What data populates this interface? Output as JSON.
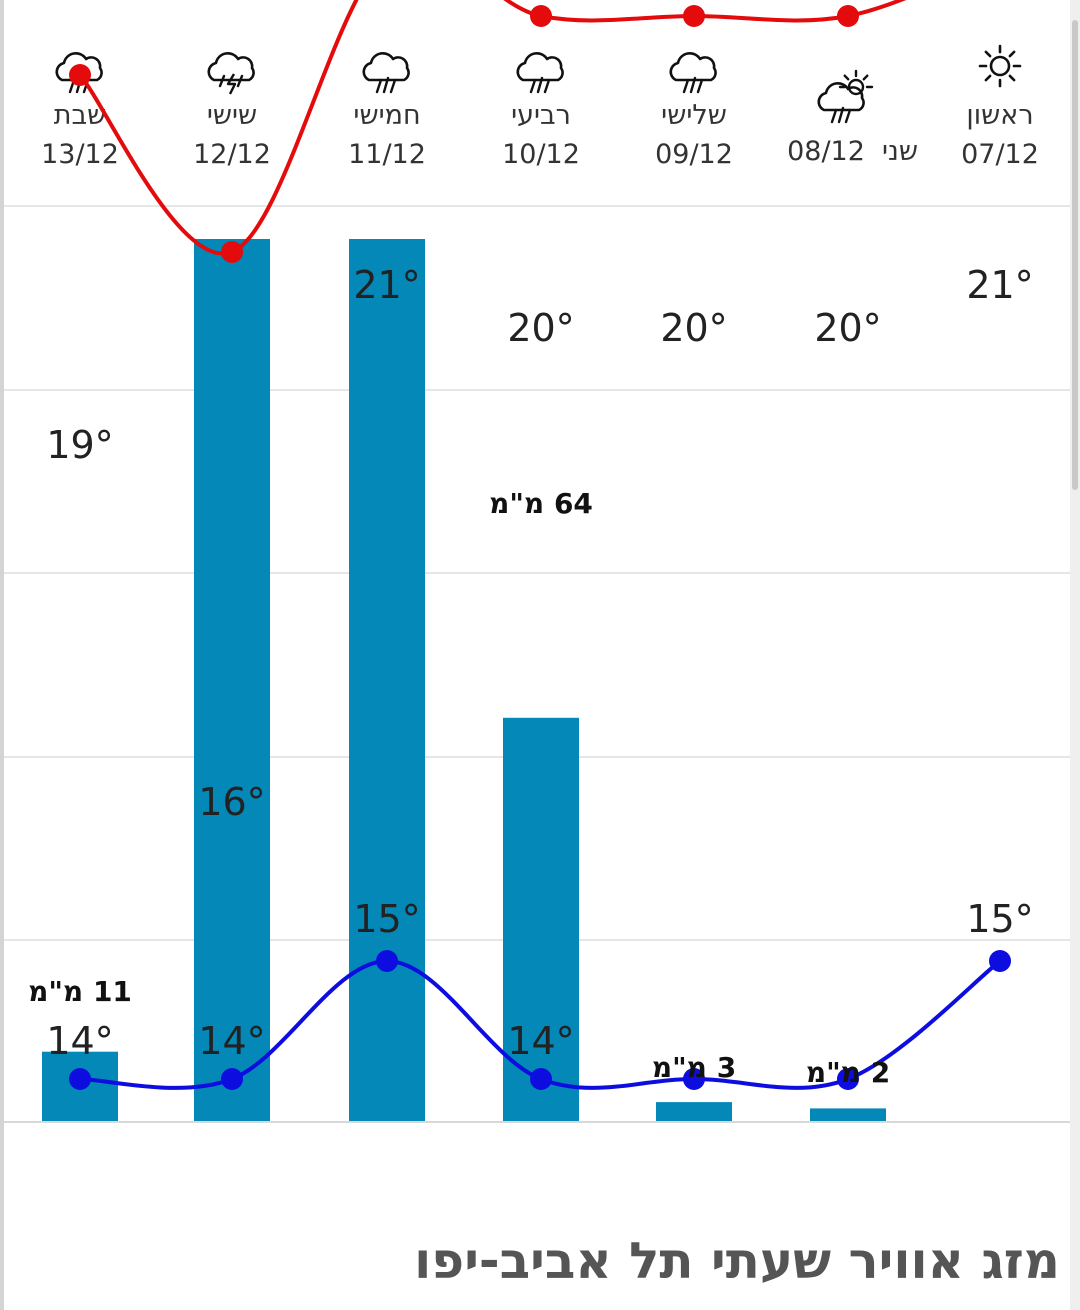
{
  "page": {
    "title": "מזג אוויר שעתי תל אביב-יפו"
  },
  "colors": {
    "max_temp_line": "#e30b0b",
    "min_temp_line": "#0d0de0",
    "precip_bar": "#0388b8",
    "grid": "#e6e6e6"
  },
  "chart_data": {
    "type": "bar",
    "categories": [
      "07/12",
      "08/12",
      "09/12",
      "10/12",
      "11/12",
      "12/12",
      "13/12"
    ],
    "days": [
      {
        "name": "ראשון",
        "date": "07/12",
        "icon": "sun-icon"
      },
      {
        "name": "שני",
        "date": "08/12",
        "icon": "sun-cloud-rain-icon"
      },
      {
        "name": "שלישי",
        "date": "09/12",
        "icon": "rain-cloud-icon"
      },
      {
        "name": "רביעי",
        "date": "10/12",
        "icon": "rain-cloud-icon"
      },
      {
        "name": "חמישי",
        "date": "11/12",
        "icon": "rain-cloud-icon"
      },
      {
        "name": "שישי",
        "date": "12/12",
        "icon": "thunderstorm-icon"
      },
      {
        "name": "שבת",
        "date": "13/12",
        "icon": "rain-cloud-icon"
      }
    ],
    "series": [
      {
        "type": "line",
        "values": [
          21,
          20,
          20,
          20,
          21,
          16,
          19
        ]
      },
      {
        "type": "line",
        "values": [
          15,
          14,
          14,
          14,
          15,
          14,
          14
        ]
      },
      {
        "type": "bar",
        "values": [
          null,
          2,
          3,
          64,
          140,
          140,
          11
        ]
      }
    ],
    "temp_labels": {
      "max": [
        "21°",
        "20°",
        "20°",
        "20°",
        "21°",
        "16°",
        "19°"
      ],
      "min": [
        "15°",
        "",
        "",
        "14°",
        "15°",
        "14°",
        "14°"
      ]
    },
    "precip_labels": [
      "",
      "2 מ\"מ",
      "3 מ\"מ",
      "64 מ\"מ",
      "",
      "",
      "11 מ\"מ"
    ],
    "temp_range": [
      13,
      22
    ],
    "precip_range": [
      0,
      100
    ],
    "grid": true,
    "legend": false
  }
}
